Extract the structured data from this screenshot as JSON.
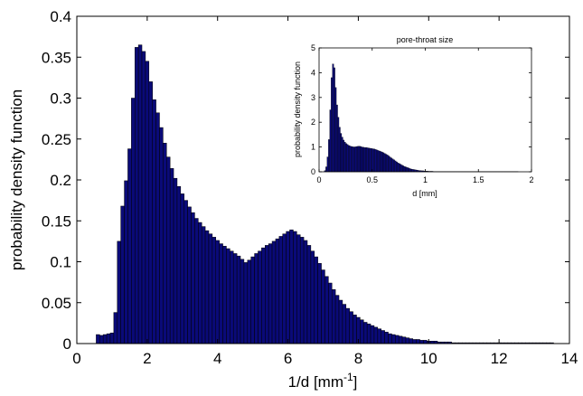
{
  "chart_data": [
    {
      "type": "bar",
      "role": "main",
      "xlabel": "1/d [mm",
      "xlabel_sup": "-1",
      "xlabel_end": "]",
      "ylabel": "probability density function",
      "xlim": [
        0,
        14
      ],
      "ylim": [
        0,
        0.4
      ],
      "xticks": [
        "0",
        "2",
        "4",
        "6",
        "8",
        "10",
        "12",
        "14"
      ],
      "yticks": [
        "0",
        "0.05",
        "0.1",
        "0.15",
        "0.2",
        "0.25",
        "0.3",
        "0.35",
        "0.4"
      ],
      "bin_start": 0.55,
      "bin_width": 0.1,
      "bar_color": "#0a0a78",
      "values": [
        0.011,
        0.01,
        0.011,
        0.012,
        0.013,
        0.038,
        0.125,
        0.168,
        0.199,
        0.238,
        0.3,
        0.362,
        0.365,
        0.357,
        0.345,
        0.32,
        0.298,
        0.282,
        0.264,
        0.245,
        0.228,
        0.214,
        0.202,
        0.192,
        0.183,
        0.175,
        0.167,
        0.16,
        0.153,
        0.148,
        0.143,
        0.138,
        0.134,
        0.13,
        0.126,
        0.122,
        0.119,
        0.116,
        0.113,
        0.11,
        0.107,
        0.103,
        0.099,
        0.102,
        0.106,
        0.11,
        0.113,
        0.117,
        0.12,
        0.122,
        0.125,
        0.128,
        0.131,
        0.134,
        0.137,
        0.139,
        0.137,
        0.133,
        0.13,
        0.126,
        0.12,
        0.113,
        0.106,
        0.098,
        0.09,
        0.082,
        0.074,
        0.066,
        0.059,
        0.053,
        0.048,
        0.043,
        0.039,
        0.035,
        0.032,
        0.029,
        0.026,
        0.024,
        0.022,
        0.02,
        0.018,
        0.016,
        0.014,
        0.012,
        0.011,
        0.01,
        0.009,
        0.008,
        0.007,
        0.006,
        0.005,
        0.005,
        0.004,
        0.004,
        0.003,
        0.003,
        0.003,
        0.002,
        0.002,
        0.002,
        0.002,
        0.001,
        0.001,
        0.001,
        0.001,
        0.001,
        0.001,
        0.001,
        0.001,
        0.001,
        0.001,
        0.001,
        0.001,
        0.001,
        0.001,
        0.001,
        0.001,
        0.001,
        0.001,
        0.001,
        0.001,
        0.001,
        0.001,
        0.001,
        0.001,
        0.001,
        0.001,
        0.001,
        0.001,
        0.001
      ]
    },
    {
      "type": "bar",
      "role": "inset",
      "title": "pore-throat size",
      "xlabel": "d [mm]",
      "ylabel": "probability density function",
      "xlim": [
        0,
        2
      ],
      "ylim": [
        0,
        5
      ],
      "xticks": [
        "0",
        "0.5",
        "1",
        "1.5",
        "2"
      ],
      "yticks": [
        "0",
        "1",
        "2",
        "3",
        "4",
        "5"
      ],
      "bin_start": 0.05,
      "bin_width": 0.0125,
      "bar_color": "#0a0a78",
      "values": [
        0.05,
        0.2,
        0.6,
        1.3,
        2.5,
        3.8,
        4.35,
        4.2,
        3.4,
        2.7,
        2.2,
        1.8,
        1.55,
        1.4,
        1.28,
        1.2,
        1.14,
        1.1,
        1.06,
        1.04,
        1.02,
        1.01,
        1.0,
        1.01,
        1.02,
        1.03,
        1.03,
        1.02,
        1.0,
        0.99,
        0.98,
        0.98,
        0.97,
        0.96,
        0.95,
        0.94,
        0.93,
        0.92,
        0.9,
        0.88,
        0.86,
        0.84,
        0.82,
        0.8,
        0.77,
        0.74,
        0.71,
        0.68,
        0.64,
        0.6,
        0.56,
        0.52,
        0.48,
        0.44,
        0.4,
        0.36,
        0.33,
        0.3,
        0.27,
        0.24,
        0.21,
        0.19,
        0.17,
        0.15,
        0.13,
        0.11,
        0.1,
        0.09,
        0.08,
        0.07,
        0.06,
        0.05,
        0.05,
        0.04,
        0.04,
        0.03,
        0.03,
        0.03,
        0.02,
        0.02,
        0.02,
        0.02,
        0.01,
        0.01,
        0.01,
        0.01,
        0.01,
        0.01,
        0.01,
        0.01,
        0.01,
        0.01,
        0.01,
        0.01,
        0.01,
        0.01,
        0.01,
        0.01,
        0.01,
        0.01,
        0.01,
        0.01,
        0.01,
        0.01,
        0.01,
        0.01,
        0.01,
        0.01,
        0.01,
        0.01,
        0.01,
        0.01,
        0.01,
        0.01,
        0.01,
        0.01,
        0.01,
        0.01,
        0.01,
        0.01,
        0.01,
        0.01,
        0.01,
        0.01,
        0.01,
        0.01,
        0.01,
        0.01,
        0.01,
        0.01,
        0.01,
        0.01,
        0.01,
        0.01,
        0.01,
        0.01,
        0.01,
        0.01,
        0.01,
        0.01,
        0.01,
        0.01,
        0.01,
        0.01,
        0.01,
        0.01
      ]
    }
  ]
}
